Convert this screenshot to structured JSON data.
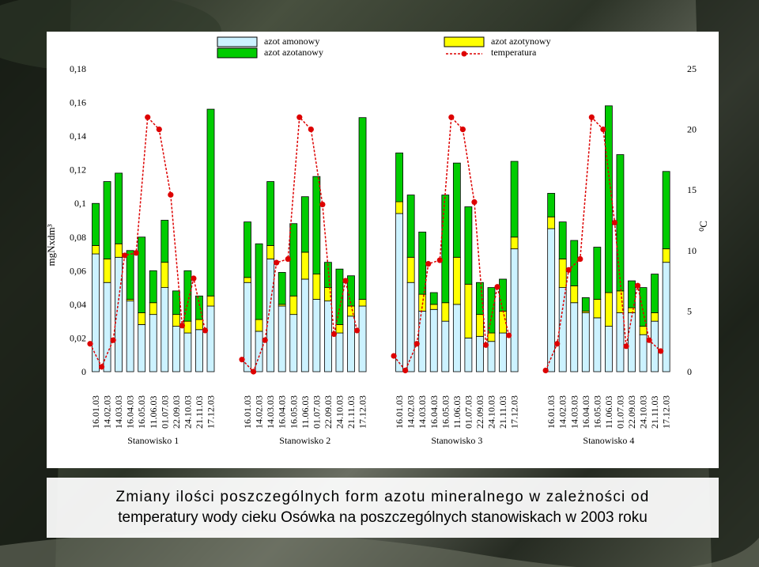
{
  "slide": {
    "caption_line1": "Zmiany ilości poszczególnych form azotu mineralnego w zależności od",
    "caption_line2": "temperatury wody cieku Osówka na poszczególnych stanowiskach w 2003 roku"
  },
  "colors": {
    "amonowy": "#ccf2ff",
    "azotynowy": "#ffff00",
    "azotanowy": "#00cc00",
    "temperatura": "#dd0000"
  },
  "chart_data": {
    "type": "bar",
    "stacked": true,
    "ylabel": "mgNxdm³",
    "y2label": "⁰C",
    "ylim": [
      0,
      0.18
    ],
    "y2lim": [
      0,
      25
    ],
    "y_ticks": [
      "0",
      "0,02",
      "0,04",
      "0,06",
      "0,08",
      "0,1",
      "0,12",
      "0,14",
      "0,16",
      "0,18"
    ],
    "y2_ticks": [
      "0",
      "5",
      "10",
      "15",
      "20",
      "25"
    ],
    "grid": false,
    "legend": {
      "position": "top",
      "items": [
        "azot amonowy",
        "azot azotanowy",
        "azot azotynowy",
        "temperatura"
      ]
    },
    "categories": [
      "16.01.03",
      "14.02.03",
      "14.03.03",
      "16.04.03",
      "16.05.03",
      "11.06.03",
      "01.07.03",
      "22.09.03",
      "24.10.03",
      "21.11.03",
      "17.12.03"
    ],
    "groups": [
      {
        "name": "Stanowisko 1",
        "amonowy": [
          0.07,
          0.053,
          0.068,
          0.042,
          0.028,
          0.034,
          0.05,
          0.027,
          0.023,
          0.025,
          0.039
        ],
        "azotynowy": [
          0.005,
          0.014,
          0.008,
          0.001,
          0.007,
          0.007,
          0.015,
          0.007,
          0.007,
          0.006,
          0.006
        ],
        "azotanowy": [
          0.025,
          0.046,
          0.042,
          0.029,
          0.045,
          0.019,
          0.025,
          0.014,
          0.03,
          0.014,
          0.111
        ],
        "temperatura": [
          2.3,
          0.4,
          2.6,
          9.6,
          9.8,
          21.0,
          20.0,
          14.6,
          3.8,
          7.7,
          3.4
        ]
      },
      {
        "name": "Stanowisko 2",
        "amonowy": [
          0.053,
          0.024,
          0.067,
          0.039,
          0.034,
          0.055,
          0.043,
          0.042,
          0.023,
          0.033,
          0.039
        ],
        "azotynowy": [
          0.003,
          0.007,
          0.008,
          0.001,
          0.011,
          0.016,
          0.015,
          0.008,
          0.005,
          0.006,
          0.004
        ],
        "azotanowy": [
          0.033,
          0.045,
          0.038,
          0.019,
          0.043,
          0.033,
          0.058,
          0.015,
          0.033,
          0.018,
          0.108
        ],
        "temperatura": [
          1.0,
          0.0,
          2.6,
          9.0,
          9.3,
          21.0,
          20.0,
          13.8,
          3.1,
          7.5,
          3.4
        ]
      },
      {
        "name": "Stanowisko 3",
        "amonowy": [
          0.094,
          0.053,
          0.036,
          0.037,
          0.03,
          0.04,
          0.02,
          0.021,
          0.018,
          0.023,
          0.073
        ],
        "azotynowy": [
          0.007,
          0.015,
          0.01,
          0.003,
          0.011,
          0.028,
          0.032,
          0.013,
          0.005,
          0.013,
          0.007
        ],
        "azotanowy": [
          0.029,
          0.037,
          0.037,
          0.007,
          0.064,
          0.056,
          0.046,
          0.019,
          0.027,
          0.019,
          0.045
        ],
        "temperatura": [
          1.3,
          0.1,
          2.3,
          8.9,
          9.2,
          21.0,
          20.0,
          14.0,
          2.2,
          7.0,
          3.0
        ]
      },
      {
        "name": "Stanowisko 4",
        "amonowy": [
          0.085,
          0.05,
          0.041,
          0.035,
          0.032,
          0.027,
          0.035,
          0.035,
          0.022,
          0.03,
          0.065
        ],
        "azotynowy": [
          0.007,
          0.017,
          0.01,
          0.001,
          0.011,
          0.02,
          0.013,
          0.003,
          0.005,
          0.005,
          0.008
        ],
        "azotanowy": [
          0.014,
          0.022,
          0.027,
          0.008,
          0.031,
          0.111,
          0.081,
          0.016,
          0.023,
          0.023,
          0.046
        ],
        "temperatura": [
          0.1,
          2.3,
          8.4,
          9.3,
          21.0,
          20.0,
          12.3,
          2.1,
          7.1,
          2.6,
          1.7
        ]
      }
    ]
  }
}
